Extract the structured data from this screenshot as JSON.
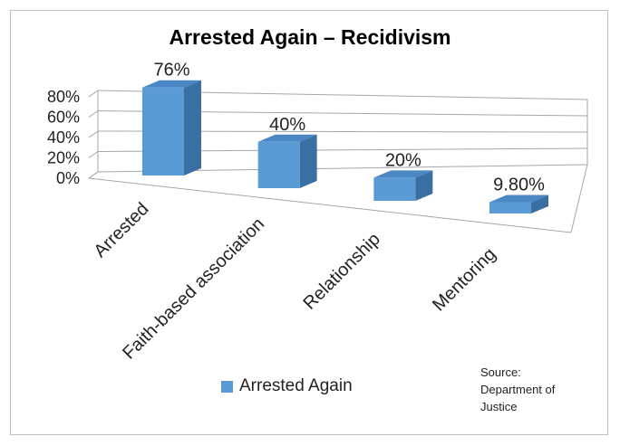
{
  "chart_data": {
    "type": "bar",
    "title": "Arrested Again – Recidivism",
    "categories": [
      "Arrested",
      "Faith-based association",
      "Relationship",
      "Mentoring"
    ],
    "series": [
      {
        "name": "Arrested Again",
        "values": [
          76,
          40,
          20,
          9.8
        ],
        "data_labels": [
          "76%",
          "40%",
          "20%",
          "9.80%"
        ]
      }
    ],
    "yticks": [
      "0%",
      "20%",
      "40%",
      "60%",
      "80%"
    ],
    "ylim": [
      0,
      80
    ],
    "grid": true,
    "legend_position": "bottom",
    "style": "3d-column"
  },
  "source_note": [
    "Source:",
    "Department of",
    "Justice"
  ],
  "colors": {
    "front": "#5b9bd5",
    "top": "#4a87c4",
    "side": "#3a6fa3",
    "grid": "#a6a6a6"
  }
}
